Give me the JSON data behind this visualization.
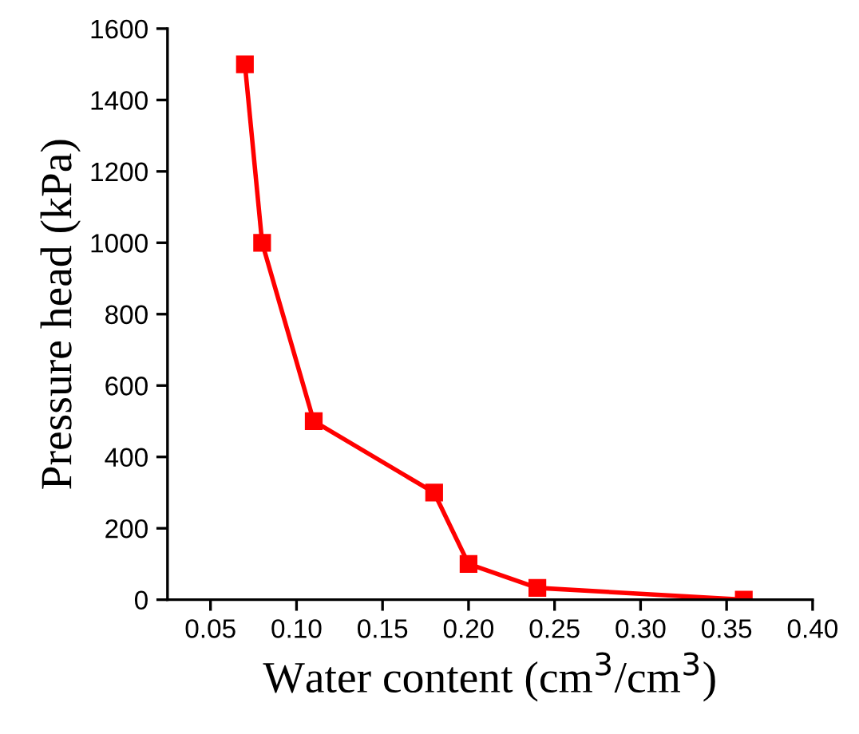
{
  "chart_data": {
    "type": "line",
    "xlabel": "Water content (cm$^{3}$/cm$^{3}$)",
    "ylabel": "Pressure head (kPa)",
    "x": [
      0.07,
      0.08,
      0.11,
      0.18,
      0.2,
      0.24,
      0.36
    ],
    "series": [
      {
        "color": "#ff0000",
        "values": [
          1500,
          1000,
          500,
          300,
          100,
          33,
          0
        ]
      }
    ],
    "xlim": [
      0.025,
      0.4
    ],
    "xticks": [
      {
        "value": 0.05,
        "label": "0.05"
      },
      {
        "value": 0.1,
        "label": "0.10"
      },
      {
        "value": 0.15,
        "label": "0.15"
      },
      {
        "value": 0.2,
        "label": "0.20"
      },
      {
        "value": 0.25,
        "label": "0.25"
      },
      {
        "value": 0.3,
        "label": "0.30"
      },
      {
        "value": 0.35,
        "label": "0.35"
      },
      {
        "value": 0.4,
        "label": "0.40"
      }
    ],
    "ylim": [
      0,
      1600
    ],
    "yticks": [
      0,
      200,
      400,
      600,
      800,
      1000,
      1200,
      1400,
      1600
    ],
    "marker": "square",
    "line_style": "solid",
    "grid": false,
    "legend": false
  }
}
